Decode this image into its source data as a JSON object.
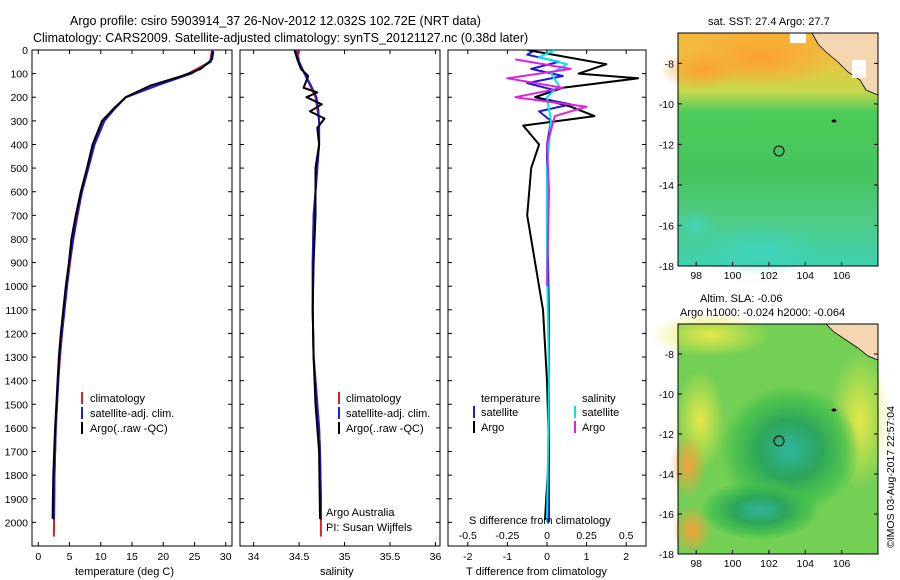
{
  "header": {
    "title_line1": "Argo profile: csiro 5903914_37 26-Nov-2012 12.032S 102.72E (NRT data)",
    "title_line2": "Climatology: CARS2009. Satellite-adjusted climatology: synTS_20121127.nc (0.38d later)"
  },
  "credit": "©IMOS 03-Aug-2017 22:57:04",
  "colors": {
    "climatology": "#e02020",
    "satellite": "#1a1ae0",
    "argo": "#000000",
    "salinity_satellite": "#00e5e5",
    "salinity_argo": "#e020e0",
    "land": "#f4d6b0"
  },
  "chart_data": [
    {
      "type": "line",
      "panel": "temperature",
      "xlabel": "temperature (deg C)",
      "ylabel": "",
      "xlim": [
        -1,
        31
      ],
      "ylim": [
        2100,
        0
      ],
      "xticks": [
        0,
        5,
        10,
        15,
        20,
        25,
        30
      ],
      "yticks": [
        0,
        100,
        200,
        300,
        400,
        500,
        600,
        700,
        800,
        900,
        1000,
        1100,
        1200,
        1300,
        1400,
        1500,
        1600,
        1700,
        1800,
        1900,
        2000
      ],
      "legend": [
        "climatology",
        "satellite-adj. clim.",
        "Argo(..raw -QC)"
      ],
      "series": [
        {
          "name": "climatology",
          "x": [
            27.8,
            27.5,
            24,
            19,
            14,
            12,
            10.5,
            9,
            8,
            7,
            6.3,
            5.6,
            5.1,
            4.6,
            4.2,
            3.8,
            3.5,
            3.2,
            3,
            2.8,
            2.6,
            2.5
          ],
          "y": [
            0,
            50,
            100,
            150,
            200,
            250,
            300,
            400,
            500,
            600,
            700,
            800,
            900,
            1000,
            1100,
            1200,
            1300,
            1400,
            1500,
            1600,
            1800,
            2060
          ]
        },
        {
          "name": "satellite-adj. clim.",
          "x": [
            27.9,
            27.6,
            24.5,
            19,
            14,
            12.2,
            10.6,
            9,
            8,
            7,
            6.2,
            5.6,
            5,
            4.6,
            4.2,
            3.8,
            3.4,
            3.2,
            3,
            2.8,
            2.6,
            2.5
          ],
          "y": [
            0,
            50,
            100,
            150,
            200,
            250,
            300,
            400,
            500,
            600,
            700,
            800,
            900,
            1000,
            1100,
            1200,
            1300,
            1400,
            1500,
            1600,
            1800,
            1990
          ]
        },
        {
          "name": "Argo(..raw -QC)",
          "x": [
            28,
            27.8,
            26,
            23,
            18,
            14,
            12,
            10.2,
            8.7,
            7.8,
            6.8,
            6,
            5.3,
            4.9,
            4.4,
            4,
            3.6,
            3.3,
            3.1,
            2.9,
            2.7,
            2.4,
            2.3
          ],
          "y": [
            5,
            40,
            80,
            110,
            150,
            200,
            250,
            300,
            400,
            500,
            600,
            700,
            800,
            900,
            1000,
            1100,
            1200,
            1300,
            1400,
            1500,
            1600,
            1800,
            1985
          ]
        }
      ]
    },
    {
      "type": "line",
      "panel": "salinity",
      "xlabel": "salinity",
      "xlim": [
        33.85,
        36.05
      ],
      "ylim": [
        2100,
        0
      ],
      "xticks": [
        34,
        34.5,
        35,
        35.5,
        36
      ],
      "legend": [
        "climatology",
        "satellite-adj. clim.",
        "Argo(..raw -QC)"
      ],
      "annotation_line1": "Argo Australia",
      "annotation_line2": "PI: Susan Wijffels",
      "series": [
        {
          "name": "climatology",
          "x": [
            34.48,
            34.5,
            34.56,
            34.62,
            34.68,
            34.7,
            34.72,
            34.72,
            34.7,
            34.68,
            34.66,
            34.65,
            34.65,
            34.66,
            34.68,
            34.7,
            34.72,
            34.73,
            34.74,
            34.74
          ],
          "y": [
            0,
            50,
            100,
            150,
            200,
            250,
            300,
            400,
            500,
            600,
            700,
            900,
            1100,
            1300,
            1400,
            1500,
            1600,
            1700,
            1900,
            2060
          ]
        },
        {
          "name": "satellite-adj. clim.",
          "x": [
            34.46,
            34.5,
            34.56,
            34.63,
            34.69,
            34.71,
            34.72,
            34.72,
            34.7,
            34.68,
            34.66,
            34.65,
            34.65,
            34.66,
            34.68,
            34.7,
            34.72,
            34.73,
            34.74,
            34.74
          ],
          "y": [
            0,
            50,
            100,
            150,
            200,
            250,
            300,
            400,
            500,
            600,
            700,
            900,
            1100,
            1300,
            1400,
            1500,
            1600,
            1700,
            1900,
            1990
          ]
        },
        {
          "name": "Argo(..raw -QC)",
          "x": [
            34.45,
            34.48,
            34.52,
            34.6,
            34.55,
            34.7,
            34.58,
            34.75,
            34.62,
            34.78,
            34.7,
            34.72,
            34.68,
            34.68,
            34.66,
            34.65,
            34.66,
            34.68,
            34.7,
            34.72,
            34.73
          ],
          "y": [
            0,
            40,
            80,
            110,
            160,
            180,
            200,
            230,
            260,
            290,
            330,
            400,
            500,
            700,
            900,
            1100,
            1300,
            1500,
            1600,
            1700,
            1985
          ]
        }
      ]
    },
    {
      "type": "line",
      "panel": "difference",
      "xlabel": "T difference from climatology",
      "xlabel_top": "S difference from climatology",
      "xlim": [
        -2.5,
        2.5
      ],
      "ylim": [
        2100,
        0
      ],
      "xticks": [
        -2,
        -1,
        0,
        1,
        2
      ],
      "xticks_top": [
        -0.5,
        -0.25,
        0,
        0.25,
        0.5
      ],
      "legend_temperature_header": "temperature",
      "legend_salinity_header": "salinity",
      "legend": [
        "satellite",
        "Argo",
        "satellite",
        "Argo"
      ],
      "series": [
        {
          "name": "temperature satellite",
          "x": [
            -0.3,
            -0.5,
            0.3,
            -0.4,
            0.4,
            -0.5,
            0.2,
            -0.3,
            0.6,
            -0.2,
            0.1,
            0,
            0,
            0.05,
            0.05,
            0.05
          ],
          "y": [
            0,
            20,
            50,
            80,
            110,
            140,
            170,
            200,
            230,
            260,
            300,
            400,
            700,
            1100,
            1500,
            2000
          ]
        },
        {
          "name": "temperature Argo",
          "x": [
            -0.5,
            0.5,
            1.5,
            0.8,
            2.3,
            0.4,
            -0.3,
            0.6,
            1.2,
            -0.6,
            -0.2,
            -0.4,
            -0.5,
            -0.3,
            -0.1,
            0,
            0.05,
            -0.05
          ],
          "y": [
            0,
            30,
            60,
            100,
            120,
            160,
            200,
            240,
            280,
            320,
            400,
            500,
            700,
            900,
            1100,
            1400,
            1700,
            1990
          ]
        },
        {
          "name": "salinity satellite",
          "x": [
            0.2,
            -0.2,
            0.5,
            0.1,
            0.3,
            0,
            0.1,
            0,
            0,
            0.05,
            0
          ],
          "y": [
            0,
            30,
            60,
            100,
            150,
            200,
            300,
            500,
            900,
            1400,
            2000
          ]
        },
        {
          "name": "salinity Argo",
          "x": [
            -0.8,
            0.6,
            -1,
            0.4,
            -0.8,
            1,
            0.2,
            0,
            0.05,
            0
          ],
          "y": [
            40,
            80,
            120,
            160,
            200,
            240,
            280,
            400,
            600,
            1000
          ]
        }
      ]
    },
    {
      "type": "heatmap",
      "panel": "sst_map",
      "title": "sat. SST: 27.4 Argo: 27.7",
      "xlim": [
        97,
        108
      ],
      "ylim": [
        -18,
        -6.5
      ],
      "xticks": [
        98,
        100,
        102,
        104,
        106
      ],
      "yticks": [
        -8,
        -10,
        -12,
        -14,
        -16,
        -18
      ],
      "marker": {
        "lon": 102.72,
        "lat": -12.032
      }
    },
    {
      "type": "heatmap",
      "panel": "sla_map",
      "title_line1": "Altim. SLA: -0.06",
      "title_line2": "Argo h1000: -0.024 h2000: -0.064",
      "xlim": [
        97,
        108
      ],
      "ylim": [
        -18,
        -6.5
      ],
      "xticks": [
        98,
        100,
        102,
        104,
        106
      ],
      "yticks": [
        -8,
        -10,
        -12,
        -14,
        -16,
        -18
      ],
      "marker": {
        "lon": 102.72,
        "lat": -12.032
      }
    }
  ]
}
